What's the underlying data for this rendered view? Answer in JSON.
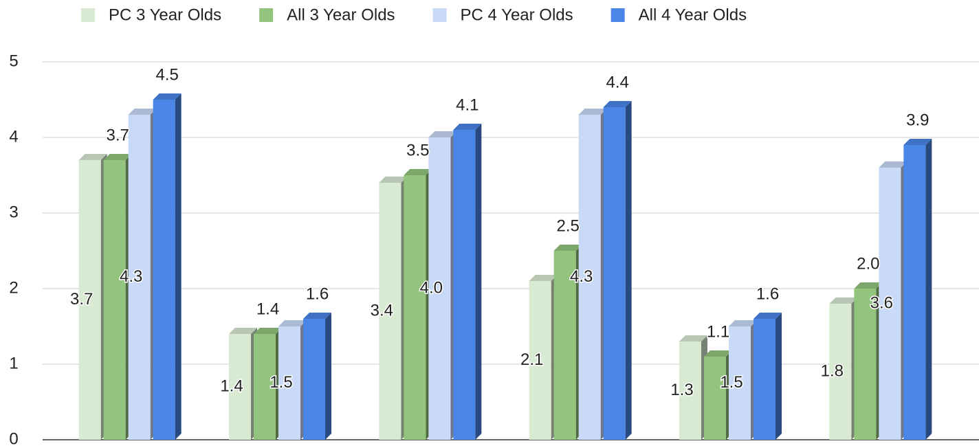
{
  "chart_data": {
    "type": "bar3d",
    "categories": [
      null,
      null,
      null,
      null,
      null,
      null
    ],
    "series": [
      {
        "name": "PC 3 Year Olds",
        "color": "#d9ead3",
        "label_color": "#222222",
        "label_position": "middle",
        "values": [
          3.7,
          1.4,
          3.4,
          2.1,
          1.3,
          1.8
        ],
        "value_labels": [
          "3.7",
          "1.4",
          "3.4",
          "2.1",
          "1.3",
          "1.8"
        ]
      },
      {
        "name": "All 3 Year Olds",
        "color": "#93c47d",
        "label_color": "#93c47d",
        "label_position": "above",
        "values": [
          3.7,
          1.4,
          3.5,
          2.5,
          1.1,
          2.0
        ],
        "value_labels": [
          "3.7",
          "1.4",
          "3.5",
          "2.5",
          "1.1",
          "2.0"
        ]
      },
      {
        "name": "PC 4 Year Olds",
        "color": "#c9daf8",
        "label_color": "#222222",
        "label_position": "middle",
        "values": [
          4.3,
          1.5,
          4.0,
          4.3,
          1.5,
          3.6
        ],
        "value_labels": [
          "4.3",
          "1.5",
          "4.0",
          "4.3",
          "1.5",
          "3.6"
        ]
      },
      {
        "name": "All 4 Year Olds",
        "color": "#4a86e8",
        "label_color": "#4a86e8",
        "label_position": "above",
        "values": [
          4.5,
          1.6,
          4.1,
          4.4,
          1.6,
          3.9
        ],
        "value_labels": [
          "4.5",
          "1.6",
          "4.1",
          "4.4",
          "1.6",
          "3.9"
        ]
      }
    ],
    "ylim": [
      0,
      5
    ],
    "yticks": [
      0,
      1,
      2,
      3,
      4,
      5
    ],
    "grid": true,
    "legend": "top"
  }
}
